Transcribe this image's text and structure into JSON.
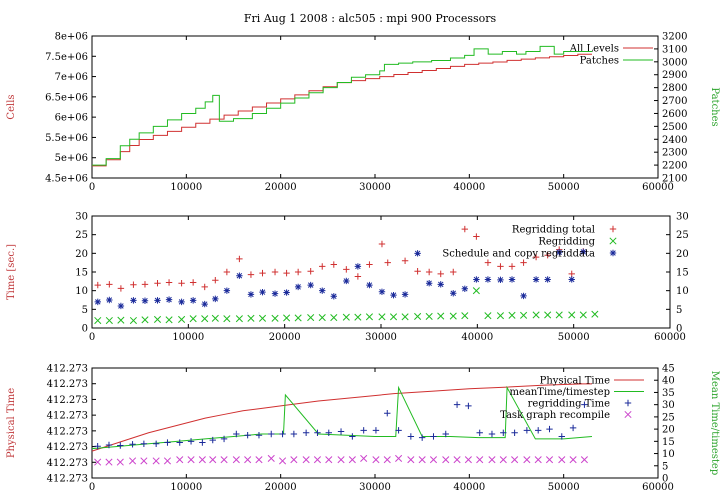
{
  "title": "Fri Aug 1 2008 : alc505 : mpi 900 Processors",
  "colors": {
    "red": "#d03030",
    "green": "#22bb22",
    "blue": "#1a2a9a",
    "magenta": "#cc44cc",
    "axis_red": "#c0383a",
    "axis_green": "#2aa32a"
  },
  "chart_data": [
    {
      "type": "line",
      "ylabel": "Cells",
      "y2label": "Patches",
      "xlim": [
        0,
        60000
      ],
      "ylim": [
        4500000,
        8000000
      ],
      "y2lim": [
        2100,
        3200
      ],
      "x_ticks": [
        "0",
        "10000",
        "20000",
        "30000",
        "40000",
        "50000",
        "60000"
      ],
      "y_ticks": [
        "4.5e+06",
        "5e+06",
        "5.5e+06",
        "6e+06",
        "6.5e+06",
        "7e+06",
        "7.5e+06",
        "8e+06"
      ],
      "y2_ticks": [
        "2100",
        "2200",
        "2300",
        "2400",
        "2500",
        "2600",
        "2700",
        "2800",
        "2900",
        "3000",
        "3100",
        "3200"
      ],
      "legend": [
        "All Levels",
        "Patches"
      ],
      "series": [
        {
          "name": "All Levels",
          "axis": "left",
          "x": [
            0,
            1500,
            3000,
            4000,
            5000,
            6500,
            8000,
            9500,
            11000,
            12500,
            14000,
            15500,
            17000,
            18500,
            20000,
            21500,
            23000,
            24500,
            26000,
            27500,
            29000,
            30500,
            32000,
            33500,
            35000,
            36500,
            38000,
            39500,
            41000,
            42500,
            44000,
            45500,
            47000,
            48500,
            50000,
            51500,
            53000
          ],
          "values": [
            4800000,
            4950000,
            5150000,
            5300000,
            5450000,
            5550000,
            5650000,
            5750000,
            5850000,
            5950000,
            6050000,
            6150000,
            6250000,
            6350000,
            6450000,
            6550000,
            6650000,
            6750000,
            6850000,
            6900000,
            6950000,
            7000000,
            7050000,
            7100000,
            7150000,
            7200000,
            7250000,
            7300000,
            7330000,
            7360000,
            7400000,
            7430000,
            7460000,
            7490000,
            7520000,
            7550000,
            7550000
          ]
        },
        {
          "name": "Patches",
          "axis": "right",
          "x": [
            0,
            1500,
            3000,
            4000,
            5000,
            6500,
            8000,
            9500,
            11000,
            12000,
            12800,
            13500,
            15000,
            17000,
            18500,
            20000,
            21500,
            23000,
            24500,
            26000,
            27500,
            29000,
            30500,
            31000,
            32500,
            34000,
            36000,
            38000,
            39500,
            40500,
            42000,
            43500,
            45000,
            46000,
            47500,
            49000,
            50000,
            51500,
            53000
          ],
          "values": [
            2200,
            2250,
            2350,
            2400,
            2450,
            2500,
            2550,
            2600,
            2640,
            2690,
            2740,
            2540,
            2560,
            2600,
            2640,
            2680,
            2720,
            2760,
            2800,
            2840,
            2880,
            2900,
            2930,
            2980,
            2990,
            3000,
            3010,
            3030,
            3050,
            3100,
            3060,
            3080,
            3060,
            3080,
            3120,
            3060,
            3080,
            3080,
            3080
          ]
        }
      ]
    },
    {
      "type": "scatter",
      "ylabel": "Time [sec.]",
      "xlim": [
        0,
        60000
      ],
      "ylim": [
        0,
        30
      ],
      "x_ticks": [
        "0",
        "10000",
        "20000",
        "30000",
        "40000",
        "50000",
        "60000"
      ],
      "y_ticks": [
        "0",
        "5",
        "10",
        "15",
        "20",
        "25",
        "30"
      ],
      "legend": [
        "Regridding total",
        "Regridding",
        "Schedule and copy regriddata"
      ],
      "series": [
        {
          "name": "Regridding total",
          "marker": "+",
          "x": [
            600,
            1800,
            3000,
            4300,
            5500,
            6800,
            8000,
            9300,
            10500,
            11700,
            12800,
            14000,
            15300,
            16500,
            17700,
            19000,
            20200,
            21400,
            22700,
            23900,
            25100,
            26400,
            27600,
            28800,
            30100,
            30700,
            32500,
            33800,
            35000,
            36200,
            37500,
            38700,
            39900,
            41100,
            42400,
            43600,
            44800,
            46100,
            47300,
            48500,
            49800,
            51000
          ],
          "values": [
            11.5,
            11.7,
            10.6,
            11.6,
            11.7,
            12.0,
            12.2,
            12.0,
            12.2,
            11.0,
            12.8,
            15.0,
            18.5,
            14.3,
            14.7,
            15.0,
            14.7,
            15.0,
            15.2,
            16.5,
            17.0,
            15.7,
            13.8,
            17.0,
            22.5,
            17.5,
            18.0,
            15.2,
            15.0,
            14.5,
            15.0,
            26.5,
            24.5,
            17.5,
            16.5,
            16.5,
            17.5,
            19.0,
            19.5,
            21.0,
            14.5,
            20.5
          ]
        },
        {
          "name": "Regridding",
          "marker": "x",
          "x": [
            600,
            1800,
            3000,
            4300,
            5500,
            6800,
            8000,
            9300,
            10500,
            11700,
            12800,
            14000,
            15300,
            16500,
            17700,
            19000,
            20200,
            21400,
            22700,
            23900,
            25100,
            26400,
            27600,
            28800,
            30100,
            31300,
            32500,
            33800,
            35000,
            36200,
            37500,
            38700,
            39900,
            41100,
            42400,
            43600,
            44800,
            46100,
            47300,
            48500,
            49800,
            51000,
            52200
          ],
          "values": [
            2.0,
            2.0,
            2.1,
            2.0,
            2.2,
            2.3,
            2.2,
            2.3,
            2.5,
            2.5,
            2.6,
            2.5,
            2.5,
            2.6,
            2.6,
            2.6,
            2.7,
            2.7,
            2.8,
            2.8,
            2.8,
            2.9,
            2.9,
            3.0,
            3.0,
            3.0,
            3.0,
            3.1,
            3.1,
            3.2,
            3.2,
            3.3,
            10.0,
            3.3,
            3.3,
            3.4,
            3.4,
            3.5,
            3.5,
            3.5,
            3.5,
            3.5,
            3.7
          ]
        },
        {
          "name": "Schedule and copy regriddata",
          "marker": "*",
          "x": [
            600,
            1800,
            3000,
            4300,
            5500,
            6800,
            8000,
            9300,
            10500,
            11700,
            12800,
            14000,
            15300,
            16500,
            17700,
            19000,
            20200,
            21400,
            22700,
            23900,
            25100,
            26400,
            27600,
            28800,
            30100,
            31300,
            32500,
            33800,
            35000,
            36200,
            37500,
            38700,
            39900,
            41100,
            42400,
            43600,
            44800,
            46100,
            47300,
            48500,
            49800,
            51000
          ],
          "values": [
            7.0,
            7.5,
            5.9,
            7.4,
            7.3,
            7.4,
            7.6,
            7.0,
            7.4,
            6.4,
            7.8,
            10.0,
            14.0,
            9.0,
            9.6,
            9.2,
            9.5,
            11.0,
            11.5,
            10.0,
            8.5,
            12.6,
            16.5,
            11.5,
            9.7,
            8.8,
            9.0,
            20.0,
            12.0,
            11.7,
            9.3,
            10.5,
            13.0,
            13.0,
            12.9,
            13.0,
            8.6,
            13.0,
            13.0,
            20.3,
            13.0,
            20.4
          ]
        }
      ]
    },
    {
      "type": "line",
      "ylabel": "Physical Time",
      "y2label": "Mean Time/timestep",
      "xlim": [
        0,
        60000
      ],
      "y2lim": [
        0,
        45
      ],
      "x_ticks": [
        "0",
        "10000",
        "20000",
        "30000",
        "40000",
        "50000",
        "60000"
      ],
      "y_ticks": [
        "412.273",
        "412.273",
        "412.273",
        "412.273",
        "412.273",
        "412.273",
        "412.273",
        "412.273"
      ],
      "y2_ticks": [
        "0",
        "5",
        "10",
        "15",
        "20",
        "25",
        "30",
        "35",
        "40",
        "45"
      ],
      "legend": [
        "Physical Time",
        "meanTime/timestep",
        "regridding Time",
        "Task graph recompile"
      ],
      "series": [
        {
          "name": "Physical Time",
          "axis": "right",
          "x": [
            0,
            2000,
            4000,
            6000,
            8000,
            10000,
            12000,
            14000,
            16000,
            18000,
            20000,
            24000,
            28000,
            32000,
            36000,
            40000,
            44000,
            48000,
            52000,
            53000
          ],
          "values": [
            11,
            13.5,
            16,
            18.5,
            20.5,
            22.5,
            24.5,
            26,
            27.5,
            28.5,
            29.5,
            31.5,
            33,
            34.5,
            35.5,
            36.5,
            37.2,
            38,
            38.5,
            38.5
          ]
        },
        {
          "name": "meanTime/timestep",
          "axis": "right",
          "x": [
            0,
            3000,
            6000,
            9000,
            12000,
            15000,
            18000,
            20300,
            20500,
            24000,
            27000,
            30000,
            32200,
            32500,
            35000,
            38000,
            41000,
            43800,
            44000,
            47000,
            50000,
            53000
          ],
          "values": [
            12,
            13,
            14,
            15,
            16,
            17,
            18,
            18,
            34,
            18,
            17.5,
            17,
            17,
            37,
            17,
            17,
            16.5,
            16.5,
            37,
            16,
            16,
            17
          ]
        },
        {
          "name": "regridding Time",
          "axis": "right",
          "marker": "+",
          "x": [
            600,
            1800,
            3000,
            4300,
            5500,
            6800,
            8000,
            9300,
            10500,
            11700,
            12800,
            14000,
            15300,
            16500,
            17700,
            19000,
            20200,
            21400,
            22700,
            23900,
            25100,
            26400,
            27600,
            28800,
            30100,
            31300,
            32500,
            33800,
            35000,
            36200,
            37500,
            38700,
            39900,
            41100,
            42400,
            43600,
            44800,
            46100,
            47300,
            48500,
            49800,
            51000,
            52200
          ],
          "values": [
            13,
            13.5,
            13.3,
            13.8,
            14,
            14,
            14.5,
            14.5,
            15,
            14.5,
            15.5,
            16,
            18,
            17.5,
            17.5,
            18,
            18,
            18,
            18.5,
            18.5,
            18.5,
            19,
            17,
            19.5,
            19.5,
            26.5,
            19.5,
            17,
            16.5,
            17,
            18,
            30,
            29.5,
            18.5,
            18,
            18.5,
            18.5,
            19.5,
            19.5,
            20,
            17,
            20.5,
            30
          ]
        },
        {
          "name": "Task graph recompile",
          "axis": "right",
          "marker": "x",
          "x": [
            600,
            1800,
            3000,
            4300,
            5500,
            6800,
            8000,
            9300,
            10500,
            11700,
            12800,
            14000,
            15300,
            16500,
            17700,
            19000,
            20200,
            21400,
            22700,
            23900,
            25100,
            26400,
            27600,
            28800,
            30100,
            31300,
            32500,
            33800,
            35000,
            36200,
            37500,
            38700,
            39900,
            41100,
            42400,
            43600,
            44800,
            46100,
            47300,
            48500,
            49800,
            51000,
            52200
          ],
          "values": [
            6.5,
            6.5,
            6.5,
            7,
            7,
            7,
            7,
            7.5,
            7.5,
            7.5,
            7.5,
            7.5,
            7.5,
            7.5,
            7.5,
            8,
            7,
            7.5,
            7.5,
            7.5,
            7.5,
            7.5,
            7.5,
            8,
            7.5,
            7.5,
            8,
            7.5,
            7.5,
            7.5,
            7.5,
            7.5,
            7.5,
            7.5,
            7.5,
            7.5,
            7.5,
            7.5,
            7.5,
            7.5,
            7.5,
            7.5,
            7.5
          ]
        }
      ]
    }
  ]
}
